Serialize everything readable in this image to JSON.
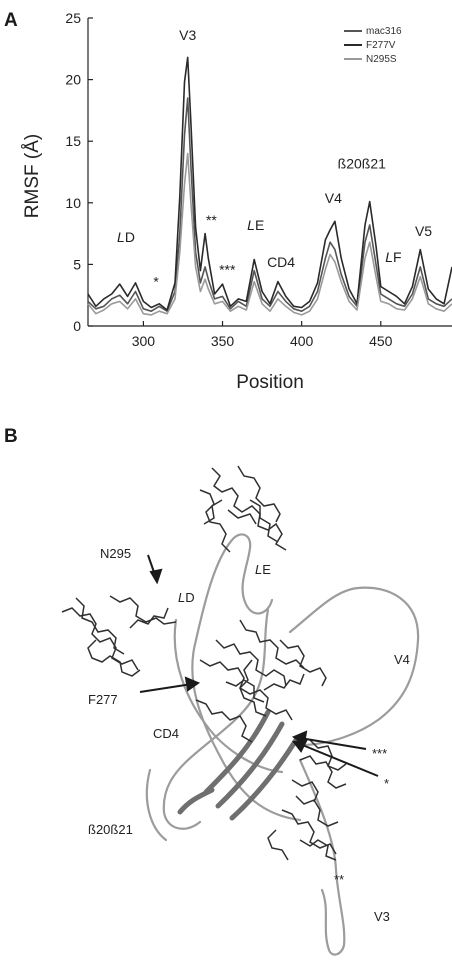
{
  "panels": {
    "a_letter": "A",
    "b_letter": "B"
  },
  "chart_data": {
    "type": "line",
    "title": "",
    "xlabel": "Position",
    "ylabel": "RMSF (Å)",
    "xlim": [
      265,
      495
    ],
    "ylim": [
      0,
      25
    ],
    "xticks": [
      300,
      350,
      400,
      450
    ],
    "yticks": [
      0,
      5,
      10,
      15,
      20,
      25
    ],
    "legend_position": "top-right",
    "grid": false,
    "series": [
      {
        "name": "mac316",
        "color": "#555555",
        "x": [
          265,
          270,
          275,
          280,
          285,
          290,
          295,
          300,
          305,
          310,
          315,
          320,
          323,
          326,
          328,
          330,
          333,
          336,
          339,
          341,
          345,
          350,
          355,
          360,
          365,
          370,
          375,
          380,
          385,
          390,
          395,
          400,
          405,
          410,
          415,
          418,
          421,
          425,
          430,
          435,
          440,
          443,
          447,
          450,
          455,
          460,
          465,
          470,
          475,
          480,
          485,
          490,
          495
        ],
        "y": [
          2.0,
          1.4,
          1.6,
          2.2,
          2.5,
          1.8,
          2.8,
          1.4,
          1.2,
          1.6,
          1.2,
          2.8,
          7.5,
          15.5,
          18.5,
          13.0,
          6.0,
          3.5,
          4.8,
          3.8,
          2.2,
          2.4,
          1.4,
          2.0,
          1.6,
          4.5,
          2.2,
          1.6,
          2.8,
          2.0,
          1.4,
          1.2,
          1.6,
          2.8,
          5.5,
          6.8,
          6.2,
          4.2,
          2.4,
          1.6,
          6.8,
          8.2,
          5.0,
          2.6,
          2.2,
          1.8,
          1.6,
          2.6,
          4.8,
          2.2,
          1.8,
          1.6,
          2.2
        ]
      },
      {
        "name": "F277V",
        "color": "#2a2a2a",
        "x": [
          265,
          270,
          275,
          280,
          285,
          290,
          295,
          300,
          305,
          310,
          315,
          320,
          323,
          326,
          328,
          330,
          333,
          336,
          339,
          341,
          345,
          350,
          355,
          360,
          365,
          370,
          375,
          380,
          385,
          390,
          395,
          400,
          405,
          410,
          415,
          418,
          421,
          425,
          430,
          435,
          440,
          443,
          447,
          450,
          455,
          460,
          465,
          470,
          475,
          480,
          485,
          490,
          495
        ],
        "y": [
          2.6,
          1.6,
          2.2,
          2.6,
          3.4,
          2.4,
          3.5,
          2.0,
          1.5,
          1.8,
          1.3,
          3.5,
          10.5,
          19.8,
          21.8,
          16.5,
          8.0,
          4.5,
          7.5,
          5.5,
          2.6,
          3.4,
          1.6,
          2.2,
          2.0,
          5.4,
          2.8,
          1.8,
          3.6,
          2.4,
          1.6,
          1.5,
          2.0,
          3.5,
          7.0,
          7.8,
          8.5,
          5.5,
          3.0,
          1.8,
          8.2,
          10.1,
          6.5,
          3.2,
          2.8,
          2.4,
          1.8,
          3.2,
          6.2,
          3.0,
          2.2,
          1.8,
          4.8
        ]
      },
      {
        "name": "N295S",
        "color": "#9a9a9a",
        "x": [
          265,
          270,
          275,
          280,
          285,
          290,
          295,
          300,
          305,
          310,
          315,
          320,
          323,
          326,
          328,
          330,
          333,
          336,
          339,
          341,
          345,
          350,
          355,
          360,
          365,
          370,
          375,
          380,
          385,
          390,
          395,
          400,
          405,
          410,
          415,
          418,
          421,
          425,
          430,
          435,
          440,
          443,
          447,
          450,
          455,
          460,
          465,
          470,
          475,
          480,
          485,
          490,
          495
        ],
        "y": [
          1.8,
          1.0,
          1.3,
          1.8,
          2.0,
          1.4,
          2.2,
          1.0,
          0.9,
          1.2,
          1.0,
          2.2,
          6.0,
          11.5,
          14.0,
          10.0,
          4.8,
          2.8,
          3.8,
          3.0,
          1.8,
          2.0,
          1.2,
          1.6,
          1.3,
          3.6,
          1.8,
          1.2,
          2.2,
          1.6,
          1.1,
          0.9,
          1.2,
          2.2,
          4.6,
          5.8,
          5.2,
          3.6,
          2.0,
          1.3,
          5.5,
          6.8,
          4.0,
          2.0,
          1.8,
          1.4,
          1.3,
          2.2,
          4.0,
          1.8,
          1.4,
          1.2,
          1.8
        ]
      }
    ],
    "annotations": [
      {
        "text": "V3",
        "x": 328,
        "y": 23.2,
        "italic_prefix": ""
      },
      {
        "text": "D",
        "x": 289,
        "y": 6.8,
        "italic_prefix": "L"
      },
      {
        "text": "*",
        "x": 308,
        "y": 3.2,
        "italic_prefix": ""
      },
      {
        "text": "**",
        "x": 343,
        "y": 8.2,
        "italic_prefix": ""
      },
      {
        "text": "***",
        "x": 353,
        "y": 4.2,
        "italic_prefix": ""
      },
      {
        "text": "E",
        "x": 371,
        "y": 7.8,
        "italic_prefix": "L"
      },
      {
        "text": "CD4",
        "x": 387,
        "y": 4.8,
        "italic_prefix": ""
      },
      {
        "text": "V4",
        "x": 420,
        "y": 10.0,
        "italic_prefix": ""
      },
      {
        "text": "ß20ß21",
        "x": 438,
        "y": 12.8,
        "italic_prefix": ""
      },
      {
        "text": "F",
        "x": 458,
        "y": 5.2,
        "italic_prefix": "L"
      },
      {
        "text": "V5",
        "x": 477,
        "y": 7.3,
        "italic_prefix": ""
      }
    ]
  },
  "structure_labels": {
    "n295": "N295",
    "le_prefix": "L",
    "le_suffix": "E",
    "ld_prefix": "L",
    "ld_suffix": "D",
    "v4": "V4",
    "f277": "F277",
    "cd4": "CD4",
    "three_star": "***",
    "one_star": "*",
    "b20b21": "ß20ß21",
    "two_star": "**",
    "v3": "V3"
  }
}
